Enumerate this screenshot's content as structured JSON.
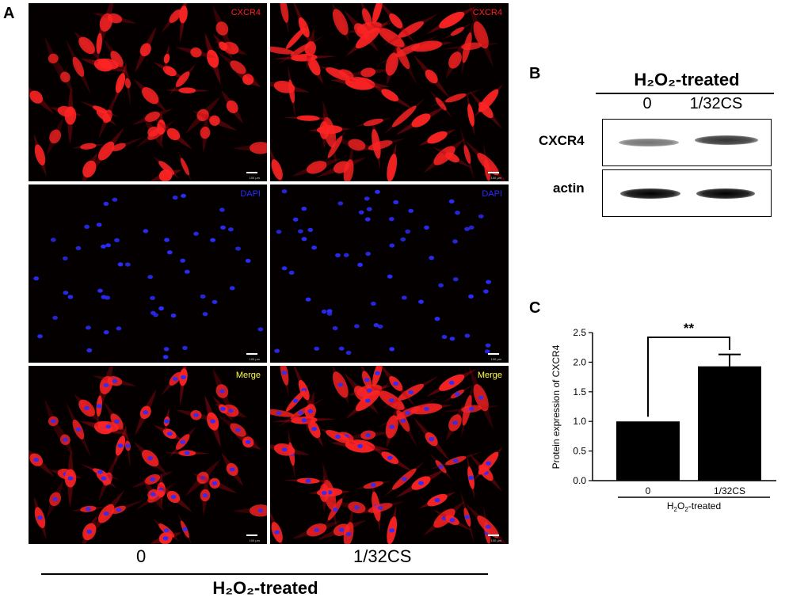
{
  "panel_a": {
    "letter": "A",
    "channels": [
      "CXCR4",
      "DAPI",
      "Merge"
    ],
    "channel_colors": [
      "#ff2020",
      "#2a2aff",
      "#ffff40"
    ],
    "scale_bar_text": "100 μm",
    "conditions": [
      "0",
      "1/32CS"
    ],
    "group_label": "H₂O₂-treated"
  },
  "panel_b": {
    "letter": "B",
    "group_label": "H₂O₂-treated",
    "lanes": [
      "0",
      "1/32CS"
    ],
    "blots": [
      {
        "protein": "CXCR4",
        "band_intensity": [
          0.55,
          0.8
        ]
      },
      {
        "protein": "actin",
        "band_intensity": [
          1.0,
          1.0
        ]
      }
    ]
  },
  "panel_c": {
    "letter": "C",
    "significance": "**",
    "xlabel": "H₂O₂-treated"
  },
  "chart_data": {
    "type": "bar",
    "categories": [
      "0",
      "1/32CS"
    ],
    "values": [
      1.0,
      1.93
    ],
    "errors": [
      0,
      0.2
    ],
    "ylabel": "Protein expression of CXCR4",
    "xlabel": "H₂O₂-treated",
    "ylim": [
      0,
      2.5
    ],
    "yticks": [
      "0.0",
      "0.5",
      "1.0",
      "1.5",
      "2.0",
      "2.5"
    ],
    "significance": "**",
    "grid": false
  }
}
